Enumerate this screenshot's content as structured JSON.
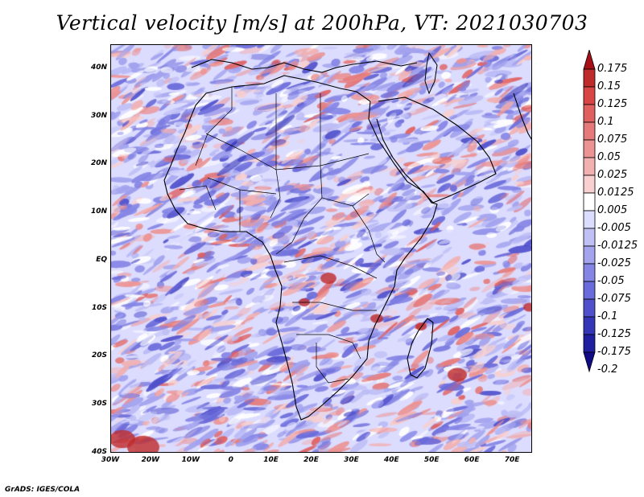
{
  "title": "Vertical velocity [m/s] at 200hPa, VT: 2021030703",
  "credit": "GrADS: IGES/COLA",
  "map": {
    "lat_labels": [
      "40N",
      "30N",
      "20N",
      "10N",
      "EQ",
      "10S",
      "20S",
      "30S",
      "40S"
    ],
    "lat_values": [
      40,
      30,
      20,
      10,
      0,
      -10,
      -20,
      -30,
      -40
    ],
    "lon_labels": [
      "30W",
      "20W",
      "10W",
      "0",
      "10E",
      "20E",
      "30E",
      "40E",
      "50E",
      "60E",
      "70E"
    ],
    "lon_values": [
      -30,
      -20,
      -10,
      0,
      10,
      20,
      30,
      40,
      50,
      60,
      70
    ],
    "lon_range": [
      -30,
      75
    ],
    "lat_range": [
      -40,
      45
    ]
  },
  "colorbar": {
    "labels": [
      "0.175",
      "0.15",
      "0.125",
      "0.1",
      "0.075",
      "0.05",
      "0.025",
      "0.0125",
      "0.005",
      "-0.005",
      "-0.0125",
      "-0.025",
      "-0.05",
      "-0.075",
      "-0.1",
      "-0.125",
      "-0.175",
      "-0.2"
    ],
    "colors": [
      "#a50f15",
      "#bf2a2a",
      "#d94545",
      "#e06060",
      "#e67a7a",
      "#ec9494",
      "#f2b0b0",
      "#f8d0d0",
      "#ffffff",
      "#dcdcff",
      "#c0c0f5",
      "#a3a3ee",
      "#8585e6",
      "#6b6bdb",
      "#5050cc",
      "#3535b8",
      "#1f1fa0",
      "#100a85"
    ]
  }
}
